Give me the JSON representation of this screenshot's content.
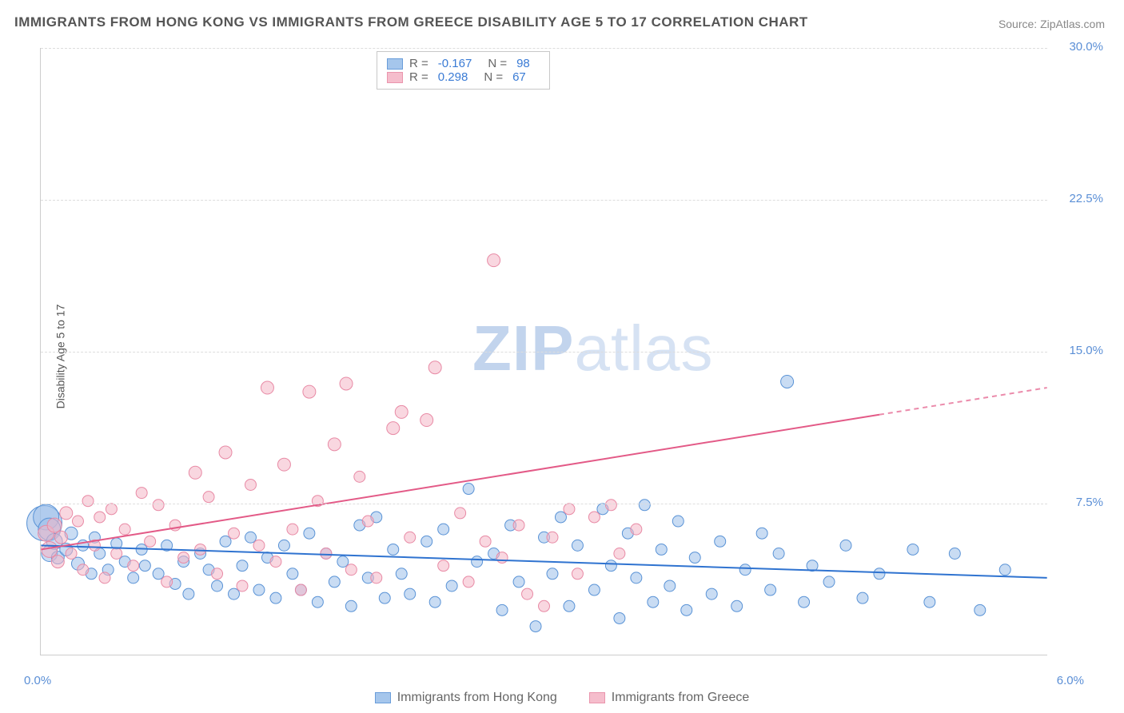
{
  "title": "IMMIGRANTS FROM HONG KONG VS IMMIGRANTS FROM GREECE DISABILITY AGE 5 TO 17 CORRELATION CHART",
  "source_label": "Source: ",
  "source_site": "ZipAtlas.com",
  "y_axis_label": "Disability Age 5 to 17",
  "watermark_a": "ZIP",
  "watermark_b": "atlas",
  "chart": {
    "type": "scatter",
    "xlim": [
      0.0,
      6.0
    ],
    "ylim": [
      0.0,
      30.0
    ],
    "x_left_tick": "0.0%",
    "x_right_tick": "6.0%",
    "y_ticks": [
      7.5,
      15.0,
      22.5,
      30.0
    ],
    "y_tick_labels": [
      "7.5%",
      "15.0%",
      "22.5%",
      "30.0%"
    ],
    "background_color": "#ffffff",
    "grid_color": "#dddddd",
    "axis_color": "#cccccc",
    "tick_label_color": "#5b8fd6",
    "series": [
      {
        "name": "Immigrants from Hong Kong",
        "fill_color": "#9cc0ea",
        "stroke_color": "#5a93d6",
        "fill_opacity": 0.55,
        "r_stat": "-0.167",
        "n_stat": "98",
        "trend": {
          "y_at_x0": 5.4,
          "y_at_x6": 3.8,
          "solid_until_x": 6.0,
          "color": "#2f73d0",
          "width": 2
        },
        "points": [
          {
            "x": 0.02,
            "y": 6.5,
            "r": 22
          },
          {
            "x": 0.03,
            "y": 6.8,
            "r": 16
          },
          {
            "x": 0.05,
            "y": 6.2,
            "r": 14
          },
          {
            "x": 0.05,
            "y": 5.0,
            "r": 10
          },
          {
            "x": 0.08,
            "y": 5.6,
            "r": 10
          },
          {
            "x": 0.1,
            "y": 4.8,
            "r": 8
          },
          {
            "x": 0.15,
            "y": 5.2,
            "r": 8
          },
          {
            "x": 0.18,
            "y": 6.0,
            "r": 8
          },
          {
            "x": 0.22,
            "y": 4.5,
            "r": 8
          },
          {
            "x": 0.25,
            "y": 5.4,
            "r": 7
          },
          {
            "x": 0.3,
            "y": 4.0,
            "r": 7
          },
          {
            "x": 0.32,
            "y": 5.8,
            "r": 7
          },
          {
            "x": 0.35,
            "y": 5.0,
            "r": 7
          },
          {
            "x": 0.4,
            "y": 4.2,
            "r": 7
          },
          {
            "x": 0.45,
            "y": 5.5,
            "r": 7
          },
          {
            "x": 0.5,
            "y": 4.6,
            "r": 7
          },
          {
            "x": 0.55,
            "y": 3.8,
            "r": 7
          },
          {
            "x": 0.6,
            "y": 5.2,
            "r": 7
          },
          {
            "x": 0.62,
            "y": 4.4,
            "r": 7
          },
          {
            "x": 0.7,
            "y": 4.0,
            "r": 7
          },
          {
            "x": 0.75,
            "y": 5.4,
            "r": 7
          },
          {
            "x": 0.8,
            "y": 3.5,
            "r": 7
          },
          {
            "x": 0.85,
            "y": 4.6,
            "r": 7
          },
          {
            "x": 0.88,
            "y": 3.0,
            "r": 7
          },
          {
            "x": 0.95,
            "y": 5.0,
            "r": 7
          },
          {
            "x": 1.0,
            "y": 4.2,
            "r": 7
          },
          {
            "x": 1.05,
            "y": 3.4,
            "r": 7
          },
          {
            "x": 1.1,
            "y": 5.6,
            "r": 7
          },
          {
            "x": 1.15,
            "y": 3.0,
            "r": 7
          },
          {
            "x": 1.2,
            "y": 4.4,
            "r": 7
          },
          {
            "x": 1.25,
            "y": 5.8,
            "r": 7
          },
          {
            "x": 1.3,
            "y": 3.2,
            "r": 7
          },
          {
            "x": 1.35,
            "y": 4.8,
            "r": 7
          },
          {
            "x": 1.4,
            "y": 2.8,
            "r": 7
          },
          {
            "x": 1.45,
            "y": 5.4,
            "r": 7
          },
          {
            "x": 1.5,
            "y": 4.0,
            "r": 7
          },
          {
            "x": 1.55,
            "y": 3.2,
            "r": 7
          },
          {
            "x": 1.6,
            "y": 6.0,
            "r": 7
          },
          {
            "x": 1.65,
            "y": 2.6,
            "r": 7
          },
          {
            "x": 1.7,
            "y": 5.0,
            "r": 7
          },
          {
            "x": 1.75,
            "y": 3.6,
            "r": 7
          },
          {
            "x": 1.8,
            "y": 4.6,
            "r": 7
          },
          {
            "x": 1.85,
            "y": 2.4,
            "r": 7
          },
          {
            "x": 1.9,
            "y": 6.4,
            "r": 7
          },
          {
            "x": 1.95,
            "y": 3.8,
            "r": 7
          },
          {
            "x": 2.0,
            "y": 6.8,
            "r": 7
          },
          {
            "x": 2.05,
            "y": 2.8,
            "r": 7
          },
          {
            "x": 2.1,
            "y": 5.2,
            "r": 7
          },
          {
            "x": 2.15,
            "y": 4.0,
            "r": 7
          },
          {
            "x": 2.2,
            "y": 3.0,
            "r": 7
          },
          {
            "x": 2.3,
            "y": 5.6,
            "r": 7
          },
          {
            "x": 2.35,
            "y": 2.6,
            "r": 7
          },
          {
            "x": 2.4,
            "y": 6.2,
            "r": 7
          },
          {
            "x": 2.45,
            "y": 3.4,
            "r": 7
          },
          {
            "x": 2.55,
            "y": 8.2,
            "r": 7
          },
          {
            "x": 2.6,
            "y": 4.6,
            "r": 7
          },
          {
            "x": 2.7,
            "y": 5.0,
            "r": 7
          },
          {
            "x": 2.75,
            "y": 2.2,
            "r": 7
          },
          {
            "x": 2.8,
            "y": 6.4,
            "r": 7
          },
          {
            "x": 2.85,
            "y": 3.6,
            "r": 7
          },
          {
            "x": 2.95,
            "y": 1.4,
            "r": 7
          },
          {
            "x": 3.0,
            "y": 5.8,
            "r": 7
          },
          {
            "x": 3.05,
            "y": 4.0,
            "r": 7
          },
          {
            "x": 3.1,
            "y": 6.8,
            "r": 7
          },
          {
            "x": 3.15,
            "y": 2.4,
            "r": 7
          },
          {
            "x": 3.2,
            "y": 5.4,
            "r": 7
          },
          {
            "x": 3.3,
            "y": 3.2,
            "r": 7
          },
          {
            "x": 3.35,
            "y": 7.2,
            "r": 7
          },
          {
            "x": 3.4,
            "y": 4.4,
            "r": 7
          },
          {
            "x": 3.45,
            "y": 1.8,
            "r": 7
          },
          {
            "x": 3.5,
            "y": 6.0,
            "r": 7
          },
          {
            "x": 3.55,
            "y": 3.8,
            "r": 7
          },
          {
            "x": 3.6,
            "y": 7.4,
            "r": 7
          },
          {
            "x": 3.65,
            "y": 2.6,
            "r": 7
          },
          {
            "x": 3.7,
            "y": 5.2,
            "r": 7
          },
          {
            "x": 3.75,
            "y": 3.4,
            "r": 7
          },
          {
            "x": 3.8,
            "y": 6.6,
            "r": 7
          },
          {
            "x": 3.85,
            "y": 2.2,
            "r": 7
          },
          {
            "x": 3.9,
            "y": 4.8,
            "r": 7
          },
          {
            "x": 4.0,
            "y": 3.0,
            "r": 7
          },
          {
            "x": 4.05,
            "y": 5.6,
            "r": 7
          },
          {
            "x": 4.15,
            "y": 2.4,
            "r": 7
          },
          {
            "x": 4.2,
            "y": 4.2,
            "r": 7
          },
          {
            "x": 4.3,
            "y": 6.0,
            "r": 7
          },
          {
            "x": 4.35,
            "y": 3.2,
            "r": 7
          },
          {
            "x": 4.4,
            "y": 5.0,
            "r": 7
          },
          {
            "x": 4.45,
            "y": 13.5,
            "r": 8
          },
          {
            "x": 4.55,
            "y": 2.6,
            "r": 7
          },
          {
            "x": 4.6,
            "y": 4.4,
            "r": 7
          },
          {
            "x": 4.7,
            "y": 3.6,
            "r": 7
          },
          {
            "x": 4.8,
            "y": 5.4,
            "r": 7
          },
          {
            "x": 4.9,
            "y": 2.8,
            "r": 7
          },
          {
            "x": 5.0,
            "y": 4.0,
            "r": 7
          },
          {
            "x": 5.2,
            "y": 5.2,
            "r": 7
          },
          {
            "x": 5.3,
            "y": 2.6,
            "r": 7
          },
          {
            "x": 5.45,
            "y": 5.0,
            "r": 7
          },
          {
            "x": 5.6,
            "y": 2.2,
            "r": 7
          },
          {
            "x": 5.75,
            "y": 4.2,
            "r": 7
          }
        ]
      },
      {
        "name": "Immigrants from Greece",
        "fill_color": "#f4b6c7",
        "stroke_color": "#e88aa5",
        "fill_opacity": 0.55,
        "r_stat": "0.298",
        "n_stat": "67",
        "trend": {
          "y_at_x0": 5.2,
          "y_at_x6": 13.2,
          "solid_until_x": 5.0,
          "color": "#e35a87",
          "width": 2
        },
        "points": [
          {
            "x": 0.03,
            "y": 6.0,
            "r": 10
          },
          {
            "x": 0.05,
            "y": 5.2,
            "r": 10
          },
          {
            "x": 0.08,
            "y": 6.4,
            "r": 9
          },
          {
            "x": 0.1,
            "y": 4.6,
            "r": 8
          },
          {
            "x": 0.12,
            "y": 5.8,
            "r": 8
          },
          {
            "x": 0.15,
            "y": 7.0,
            "r": 8
          },
          {
            "x": 0.18,
            "y": 5.0,
            "r": 7
          },
          {
            "x": 0.22,
            "y": 6.6,
            "r": 7
          },
          {
            "x": 0.25,
            "y": 4.2,
            "r": 7
          },
          {
            "x": 0.28,
            "y": 7.6,
            "r": 7
          },
          {
            "x": 0.32,
            "y": 5.4,
            "r": 7
          },
          {
            "x": 0.35,
            "y": 6.8,
            "r": 7
          },
          {
            "x": 0.38,
            "y": 3.8,
            "r": 7
          },
          {
            "x": 0.42,
            "y": 7.2,
            "r": 7
          },
          {
            "x": 0.45,
            "y": 5.0,
            "r": 7
          },
          {
            "x": 0.5,
            "y": 6.2,
            "r": 7
          },
          {
            "x": 0.55,
            "y": 4.4,
            "r": 7
          },
          {
            "x": 0.6,
            "y": 8.0,
            "r": 7
          },
          {
            "x": 0.65,
            "y": 5.6,
            "r": 7
          },
          {
            "x": 0.7,
            "y": 7.4,
            "r": 7
          },
          {
            "x": 0.75,
            "y": 3.6,
            "r": 7
          },
          {
            "x": 0.8,
            "y": 6.4,
            "r": 7
          },
          {
            "x": 0.85,
            "y": 4.8,
            "r": 7
          },
          {
            "x": 0.92,
            "y": 9.0,
            "r": 8
          },
          {
            "x": 0.95,
            "y": 5.2,
            "r": 7
          },
          {
            "x": 1.0,
            "y": 7.8,
            "r": 7
          },
          {
            "x": 1.05,
            "y": 4.0,
            "r": 7
          },
          {
            "x": 1.1,
            "y": 10.0,
            "r": 8
          },
          {
            "x": 1.15,
            "y": 6.0,
            "r": 7
          },
          {
            "x": 1.2,
            "y": 3.4,
            "r": 7
          },
          {
            "x": 1.25,
            "y": 8.4,
            "r": 7
          },
          {
            "x": 1.3,
            "y": 5.4,
            "r": 7
          },
          {
            "x": 1.35,
            "y": 13.2,
            "r": 8
          },
          {
            "x": 1.4,
            "y": 4.6,
            "r": 7
          },
          {
            "x": 1.45,
            "y": 9.4,
            "r": 8
          },
          {
            "x": 1.5,
            "y": 6.2,
            "r": 7
          },
          {
            "x": 1.55,
            "y": 3.2,
            "r": 7
          },
          {
            "x": 1.6,
            "y": 13.0,
            "r": 8
          },
          {
            "x": 1.65,
            "y": 7.6,
            "r": 7
          },
          {
            "x": 1.7,
            "y": 5.0,
            "r": 7
          },
          {
            "x": 1.75,
            "y": 10.4,
            "r": 8
          },
          {
            "x": 1.82,
            "y": 13.4,
            "r": 8
          },
          {
            "x": 1.85,
            "y": 4.2,
            "r": 7
          },
          {
            "x": 1.9,
            "y": 8.8,
            "r": 7
          },
          {
            "x": 1.95,
            "y": 6.6,
            "r": 7
          },
          {
            "x": 2.0,
            "y": 3.8,
            "r": 7
          },
          {
            "x": 2.1,
            "y": 11.2,
            "r": 8
          },
          {
            "x": 2.15,
            "y": 12.0,
            "r": 8
          },
          {
            "x": 2.2,
            "y": 5.8,
            "r": 7
          },
          {
            "x": 2.3,
            "y": 11.6,
            "r": 8
          },
          {
            "x": 2.35,
            "y": 14.2,
            "r": 8
          },
          {
            "x": 2.4,
            "y": 4.4,
            "r": 7
          },
          {
            "x": 2.5,
            "y": 7.0,
            "r": 7
          },
          {
            "x": 2.55,
            "y": 3.6,
            "r": 7
          },
          {
            "x": 2.65,
            "y": 5.6,
            "r": 7
          },
          {
            "x": 2.7,
            "y": 19.5,
            "r": 8
          },
          {
            "x": 2.75,
            "y": 4.8,
            "r": 7
          },
          {
            "x": 2.85,
            "y": 6.4,
            "r": 7
          },
          {
            "x": 2.9,
            "y": 3.0,
            "r": 7
          },
          {
            "x": 3.0,
            "y": 2.4,
            "r": 7
          },
          {
            "x": 3.05,
            "y": 5.8,
            "r": 7
          },
          {
            "x": 3.15,
            "y": 7.2,
            "r": 7
          },
          {
            "x": 3.2,
            "y": 4.0,
            "r": 7
          },
          {
            "x": 3.3,
            "y": 6.8,
            "r": 7
          },
          {
            "x": 3.4,
            "y": 7.4,
            "r": 7
          },
          {
            "x": 3.45,
            "y": 5.0,
            "r": 7
          },
          {
            "x": 3.55,
            "y": 6.2,
            "r": 7
          }
        ]
      }
    ]
  },
  "legend_top": {
    "r_label": "R =",
    "n_label": "N ="
  },
  "legend_bottom": {
    "series1_label": "Immigrants from Hong Kong",
    "series2_label": "Immigrants from Greece"
  }
}
